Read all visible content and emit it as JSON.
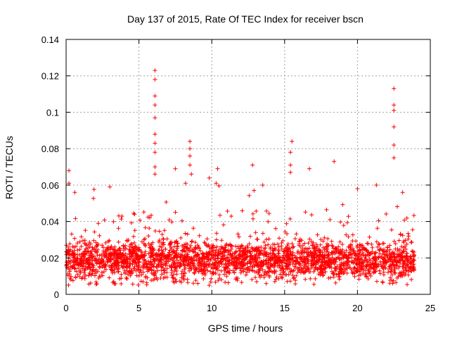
{
  "chart_data": {
    "type": "scatter",
    "title": "Day 137 of 2015, Rate Of TEC Index for receiver bscn",
    "xlabel": "GPS time / hours",
    "ylabel": "ROTI / TECUs",
    "xlim": [
      0,
      25
    ],
    "ylim": [
      0,
      0.14
    ],
    "xticks": [
      0,
      5,
      10,
      15,
      20,
      25
    ],
    "yticks": [
      0,
      0.02,
      0.04,
      0.06,
      0.08,
      0.1,
      0.12,
      0.14
    ],
    "xtick_labels": [
      "0",
      "5",
      "10",
      "15",
      "20",
      "25"
    ],
    "ytick_labels": [
      "0",
      "0.02",
      "0.04",
      "0.06",
      "0.08",
      "0.1",
      "0.12",
      "0.14"
    ],
    "grid": true,
    "marker": "+",
    "color": "#ff0000",
    "data_range_hours": [
      0,
      23.9
    ],
    "baseline_band": [
      0.008,
      0.03
    ],
    "series": [
      {
        "name": "ROTI",
        "notable_points": [
          {
            "x": 0.2,
            "y": 0.068
          },
          {
            "x": 0.2,
            "y": 0.061
          },
          {
            "x": 0.6,
            "y": 0.056
          },
          {
            "x": 3.0,
            "y": 0.059
          },
          {
            "x": 4.7,
            "y": 0.044
          },
          {
            "x": 6.1,
            "y": 0.123
          },
          {
            "x": 6.1,
            "y": 0.118
          },
          {
            "x": 6.1,
            "y": 0.109
          },
          {
            "x": 6.1,
            "y": 0.104
          },
          {
            "x": 6.1,
            "y": 0.097
          },
          {
            "x": 6.1,
            "y": 0.088
          },
          {
            "x": 6.1,
            "y": 0.083
          },
          {
            "x": 6.1,
            "y": 0.078
          },
          {
            "x": 6.1,
            "y": 0.07
          },
          {
            "x": 6.1,
            "y": 0.066
          },
          {
            "x": 7.5,
            "y": 0.069
          },
          {
            "x": 8.2,
            "y": 0.061
          },
          {
            "x": 8.5,
            "y": 0.084
          },
          {
            "x": 8.5,
            "y": 0.08
          },
          {
            "x": 8.5,
            "y": 0.076
          },
          {
            "x": 8.5,
            "y": 0.071
          },
          {
            "x": 8.6,
            "y": 0.066
          },
          {
            "x": 10.4,
            "y": 0.069
          },
          {
            "x": 10.3,
            "y": 0.061
          },
          {
            "x": 12.8,
            "y": 0.071
          },
          {
            "x": 12.9,
            "y": 0.057
          },
          {
            "x": 13.5,
            "y": 0.06
          },
          {
            "x": 15.5,
            "y": 0.084
          },
          {
            "x": 15.4,
            "y": 0.078
          },
          {
            "x": 15.4,
            "y": 0.071
          },
          {
            "x": 15.4,
            "y": 0.067
          },
          {
            "x": 16.7,
            "y": 0.069
          },
          {
            "x": 18.4,
            "y": 0.073
          },
          {
            "x": 20.0,
            "y": 0.058
          },
          {
            "x": 21.3,
            "y": 0.06
          },
          {
            "x": 22.5,
            "y": 0.113
          },
          {
            "x": 22.5,
            "y": 0.104
          },
          {
            "x": 22.5,
            "y": 0.101
          },
          {
            "x": 22.5,
            "y": 0.092
          },
          {
            "x": 22.5,
            "y": 0.082
          },
          {
            "x": 22.5,
            "y": 0.075
          },
          {
            "x": 23.1,
            "y": 0.056
          }
        ]
      }
    ]
  }
}
